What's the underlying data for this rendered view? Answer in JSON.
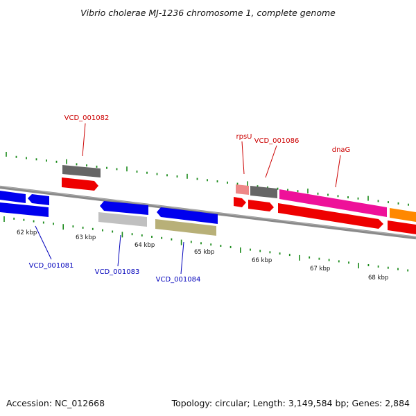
{
  "title": "Vibrio cholerae MJ-1236 chromosome 1, complete genome",
  "footer": {
    "accession": "Accession: NC_012668",
    "stats": "Topology: circular; Length: 3,149,584 bp; Genes: 2,884"
  },
  "colors": {
    "backbone": "#8a8a8a",
    "tick": "#1a8a1a",
    "label_top": "#cc0000",
    "label_bottom": "#0000bb"
  },
  "scale_labels": [
    "62 kbp",
    "63 kbp",
    "64 kbp",
    "65 kbp",
    "66 kbp",
    "67 kbp",
    "68 kbp"
  ],
  "gene_labels": [
    {
      "text": "VCD_001082",
      "color": "#cc0000",
      "feature": "top-grey-1"
    },
    {
      "text": "rpsU",
      "color": "#cc0000",
      "feature": "rpsU"
    },
    {
      "text": "VCD_001086",
      "color": "#cc0000",
      "feature": "top-grey-2"
    },
    {
      "text": "dnaG",
      "color": "#cc0000",
      "feature": "dnaG"
    },
    {
      "text": "VCD_001081",
      "color": "#0000bb",
      "feature": "blue-1"
    },
    {
      "text": "VCD_001083",
      "color": "#0000bb",
      "feature": "lightgrey"
    },
    {
      "text": "VCD_001084",
      "color": "#0000bb",
      "feature": "olive"
    }
  ],
  "features": [
    {
      "name": "top-grey-1",
      "color": "#666666",
      "strand": "top"
    },
    {
      "name": "red-cds-1",
      "color": "#ee0000",
      "strand": "plus"
    },
    {
      "name": "rpsU",
      "color": "#ee8888",
      "strand": "top"
    },
    {
      "name": "top-grey-2",
      "color": "#666666",
      "strand": "top"
    },
    {
      "name": "dnaG",
      "color": "#ee1199",
      "strand": "top"
    },
    {
      "name": "orange",
      "color": "#ff8800",
      "strand": "top"
    },
    {
      "name": "red-cds-2",
      "color": "#ee0000",
      "strand": "plus"
    },
    {
      "name": "red-cds-3",
      "color": "#ee0000",
      "strand": "plus"
    },
    {
      "name": "red-cds-4",
      "color": "#ee0000",
      "strand": "plus"
    },
    {
      "name": "red-cds-5",
      "color": "#ee0000",
      "strand": "plus"
    },
    {
      "name": "blue-1",
      "color": "#0000ee",
      "strand": "minus"
    },
    {
      "name": "blue-2",
      "color": "#0000ee",
      "strand": "minus"
    },
    {
      "name": "blue-3",
      "color": "#0000ee",
      "strand": "minus"
    },
    {
      "name": "blue-4",
      "color": "#0000ee",
      "strand": "minus"
    },
    {
      "name": "blue-5",
      "color": "#0000ee",
      "strand": "minus"
    },
    {
      "name": "lightgrey",
      "color": "#c0c0c0",
      "strand": "bottom"
    },
    {
      "name": "olive",
      "color": "#b8b078",
      "strand": "bottom"
    }
  ]
}
